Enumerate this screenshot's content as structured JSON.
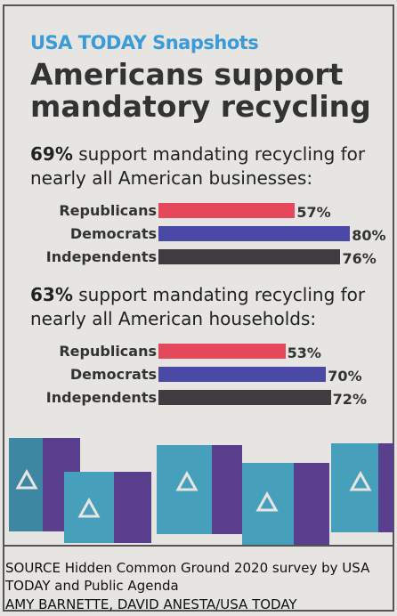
{
  "header": {
    "brand": "USA TODAY Snapshots",
    "title": "Americans support mandatory recycling"
  },
  "chart_data": [
    {
      "type": "bar",
      "orientation": "horizontal",
      "headline_value": "69%",
      "headline_text": "support mandating recycling for nearly all American businesses:",
      "categories": [
        "Republicans",
        "Democrats",
        "Independents"
      ],
      "values": [
        57,
        80,
        76
      ],
      "value_labels": [
        "57%",
        "80%",
        "76%"
      ],
      "colors": [
        "#e5485b",
        "#4a4aa6",
        "#3f3d40"
      ]
    },
    {
      "type": "bar",
      "orientation": "horizontal",
      "headline_value": "63%",
      "headline_text": "support mandating recycling for nearly all American households:",
      "categories": [
        "Republicans",
        "Democrats",
        "Independents"
      ],
      "values": [
        53,
        70,
        72
      ],
      "value_labels": [
        "53%",
        "70%",
        "72%"
      ],
      "colors": [
        "#e5485b",
        "#4a4aa6",
        "#3f3d40"
      ]
    }
  ],
  "footer": {
    "source": "SOURCE Hidden Common Ground 2020 survey by USA TODAY and Public Agenda",
    "credit": "AMY BARNETTE, DAVID ANESTA/USA TODAY"
  }
}
